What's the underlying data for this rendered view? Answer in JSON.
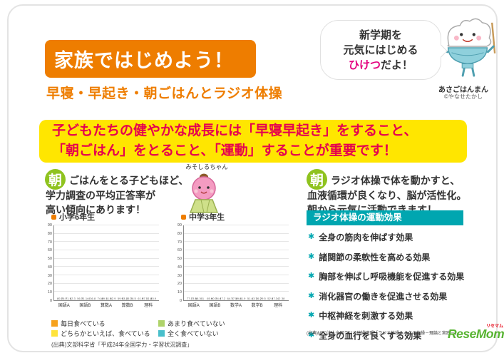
{
  "page": {
    "title_box": "家族ではじめよう！",
    "subtitle": "早寝・早起き・朝ごはんとラジオ体操"
  },
  "bubble": {
    "line1": "新学期を",
    "line2": "元気にはじめる",
    "highlight": "ひけつ",
    "line3_rest": "だよ！"
  },
  "mascot_right": {
    "name": "あさごはんまん",
    "credit": "©やなせたかし"
  },
  "banner": {
    "line1": "子どもたちの健やかな成長には「早寝早起き」をすること、",
    "line2": "「朝ごはん」をとること、「運動」することが重要です！"
  },
  "breakfast_section": {
    "drop_char": "朝",
    "line1": "ごはんをとる子どもほど、",
    "line2": "学力調査の平均正答率が",
    "line3": "高い傾向にあります！",
    "mascot_name": "みそしるちゃん",
    "source": "(出典)文部科学省「平成24年全国学力・学習状況調査」"
  },
  "radio_section": {
    "drop_char": "朝",
    "line1": "ラジオ体操で体を動かすと、",
    "line2": "血液循環が良くなり、脳が活性化。",
    "line3": "朝から元気に活動できます！",
    "effects_title": "ラジオ体操の運動効果",
    "effects": [
      "全身の筋肉を伸ばす効果",
      "諸関節の柔軟性を高める効果",
      "胸部を伸ばし呼吸機能を促進する効果",
      "消化器官の働きを促進させる効果",
      "中枢神経を刺激する効果",
      "全身の血行を良くする効果"
    ],
    "source": "(出典)NPO法人全国ラジオ体操連盟「ラジオ体操みんなの体操－理論と実践－」"
  },
  "legend": [
    {
      "label": "毎日食べている",
      "color": "#F6A21D"
    },
    {
      "label": "どちらかといえば、食べている",
      "color": "#FFE33B"
    },
    {
      "label": "あまり食べていない",
      "color": "#AFD36A"
    },
    {
      "label": "全く食べていない",
      "color": "#49BFCB"
    }
  ],
  "chart_data": [
    {
      "type": "bar",
      "title": "小学6年生",
      "categories": [
        "国語A",
        "国語B",
        "算数A",
        "算数B",
        "理科"
      ],
      "ylim": [
        0,
        90
      ],
      "grid": true,
      "legend_position": "bottom",
      "series": [
        {
          "name": "毎日食べている",
          "color": "#F6A21D",
          "values": [
            80.8,
            56.7,
            74.8,
            59.9,
            61.9
          ]
        },
        {
          "name": "どちらかといえば、食べている",
          "color": "#FFE33B",
          "values": [
            76.9,
            51.1,
            69.1,
            53.2,
            57.1
          ]
        },
        {
          "name": "あまり食べていない",
          "color": "#AFD36A",
          "values": [
            71.1,
            44.0,
            61.8,
            45.7,
            51.8
          ]
        },
        {
          "name": "全く食べていない",
          "color": "#49BFCB",
          "values": [
            62.3,
            36.8,
            52.9,
            38.5,
            45.9
          ]
        }
      ]
    },
    {
      "type": "bar",
      "title": "中学3年生",
      "categories": [
        "国語A",
        "国語B",
        "数学A",
        "数学B",
        "理科"
      ],
      "ylim": [
        0,
        90
      ],
      "grid": true,
      "legend_position": "bottom",
      "series": [
        {
          "name": "毎日食べている",
          "color": "#F6A21D",
          "values": [
            77.4,
            65.9,
            64.7,
            51.4,
            52.9
          ]
        },
        {
          "name": "どちらかといえば、食べている",
          "color": "#FFE33B",
          "values": [
            73.5,
            60.7,
            57.5,
            43.7,
            47.3
          ]
        },
        {
          "name": "あまり食べていない",
          "color": "#AFD36A",
          "values": [
            68.3,
            54.4,
            49.8,
            36.2,
            42.0
          ]
        },
        {
          "name": "全く食べていない",
          "color": "#49BFCB",
          "values": [
            61.0,
            47.2,
            41.9,
            29.5,
            38.0
          ]
        }
      ]
    }
  ],
  "logo": {
    "text": "ReseMom",
    "sub": "リセマム"
  }
}
